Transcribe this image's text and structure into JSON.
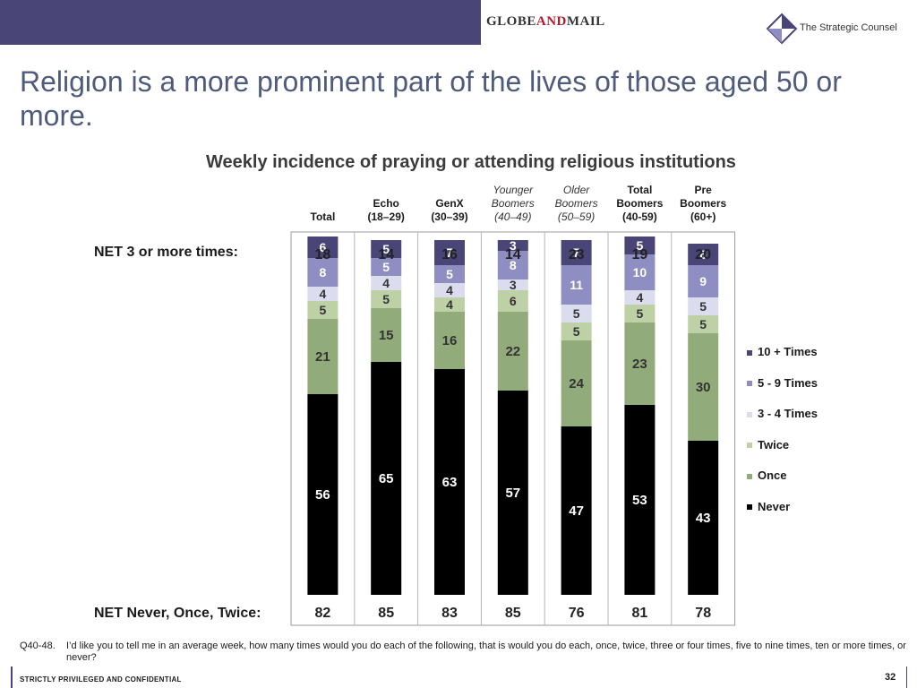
{
  "header": {
    "logo_left": {
      "part1": "GLOBE",
      "part2": "AND",
      "part3": "MAIL"
    },
    "logo_right": "The Strategic Counsel"
  },
  "title": "Religion is a more prominent part of the lives of those aged 50 or more.",
  "chart_title": "Weekly incidence of praying or attending religious institutions",
  "row_labels": {
    "net_top": "NET 3 or more times:",
    "net_bottom": "NET Never, Once, Twice:"
  },
  "columns": [
    {
      "lines": [
        "Total"
      ],
      "style": "bold"
    },
    {
      "lines": [
        "Echo",
        "(18–29)"
      ],
      "style": "bold"
    },
    {
      "lines": [
        "GenX",
        "(30–39)"
      ],
      "style": "bold"
    },
    {
      "lines": [
        "Younger",
        "Boomers",
        "(40–49)"
      ],
      "style": "italic"
    },
    {
      "lines": [
        "Older",
        "Boomers",
        "(50–59)"
      ],
      "style": "italic"
    },
    {
      "lines": [
        "Total",
        "Boomers",
        "(40-59)"
      ],
      "style": "bold"
    },
    {
      "lines": [
        "Pre",
        "Boomers",
        "(60+)"
      ],
      "style": "bold"
    }
  ],
  "chart_data": {
    "type": "bar",
    "stacked": true,
    "categories": [
      "Total",
      "Echo (18–29)",
      "GenX (30–39)",
      "Younger Boomers (40–49)",
      "Older Boomers (50–59)",
      "Total Boomers (40-59)",
      "Pre Boomers (60+)"
    ],
    "series": [
      {
        "name": "Never",
        "values": [
          56,
          65,
          63,
          57,
          47,
          53,
          43
        ],
        "color": "#000000"
      },
      {
        "name": "Once",
        "values": [
          21,
          15,
          16,
          22,
          24,
          23,
          30
        ],
        "color": "#92ab7a"
      },
      {
        "name": "Twice",
        "values": [
          5,
          5,
          4,
          6,
          5,
          5,
          5
        ],
        "color": "#bdd0a6"
      },
      {
        "name": "3 - 4 Times",
        "values": [
          4,
          4,
          4,
          3,
          5,
          4,
          5
        ],
        "color": "#dcdcef"
      },
      {
        "name": "5 - 9 Times",
        "values": [
          8,
          5,
          5,
          8,
          11,
          10,
          9
        ],
        "color": "#8f8ec3"
      },
      {
        "name": "10 + Times",
        "values": [
          6,
          5,
          7,
          3,
          7,
          5,
          6
        ],
        "color": "#4a4577"
      }
    ],
    "net_top": [
      18,
      14,
      16,
      14,
      23,
      19,
      20
    ],
    "net_bottom": [
      82,
      85,
      83,
      85,
      76,
      81,
      78
    ],
    "legend": [
      "10 + Times",
      "5 - 9 Times",
      "3 - 4 Times",
      "Twice",
      "Once",
      "Never"
    ],
    "legend_position": "right"
  },
  "footnote": {
    "qid": "Q40-48.",
    "text": "I’d like you to tell me in an average week, how many times would you do each of the following, that is would you do each, once, twice, three or four times, five to nine times, ten or more times, or never?"
  },
  "footer": "STRICTLY PRIVILEGED AND CONFIDENTIAL",
  "page_number": "32"
}
